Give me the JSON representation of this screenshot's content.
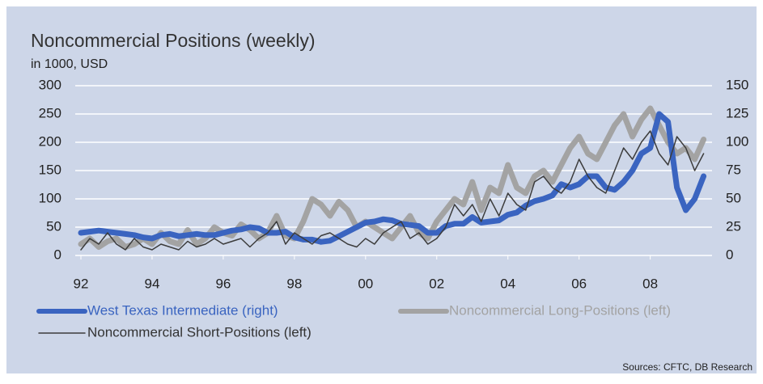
{
  "chart_data": {
    "type": "line",
    "title": "Noncommercial Positions (weekly)",
    "subtitle": "in 1000, USD",
    "source": "Sources: CFTC, DB Research",
    "x": [
      1992,
      1992.25,
      1992.5,
      1992.75,
      1993,
      1993.25,
      1993.5,
      1993.75,
      1994,
      1994.25,
      1994.5,
      1994.75,
      1995,
      1995.25,
      1995.5,
      1995.75,
      1996,
      1996.25,
      1996.5,
      1996.75,
      1997,
      1997.25,
      1997.5,
      1997.75,
      1998,
      1998.25,
      1998.5,
      1998.75,
      1999,
      1999.25,
      1999.5,
      1999.75,
      2000,
      2000.25,
      2000.5,
      2000.75,
      2001,
      2001.25,
      2001.5,
      2001.75,
      2002,
      2002.25,
      2002.5,
      2002.75,
      2003,
      2003.25,
      2003.5,
      2003.75,
      2004,
      2004.25,
      2004.5,
      2004.75,
      2005,
      2005.25,
      2005.5,
      2005.75,
      2006,
      2006.25,
      2006.5,
      2006.75,
      2007,
      2007.25,
      2007.5,
      2007.75,
      2008,
      2008.25,
      2008.5,
      2008.75,
      2009,
      2009.25,
      2009.5
    ],
    "xlim": [
      1992,
      2009.6
    ],
    "xticks": [
      {
        "value": 1992,
        "label": "92"
      },
      {
        "value": 1994,
        "label": "94"
      },
      {
        "value": 1996,
        "label": "96"
      },
      {
        "value": 1998,
        "label": "98"
      },
      {
        "value": 2000,
        "label": "00"
      },
      {
        "value": 2002,
        "label": "02"
      },
      {
        "value": 2004,
        "label": "04"
      },
      {
        "value": 2006,
        "label": "06"
      },
      {
        "value": 2008,
        "label": "08"
      }
    ],
    "ylim": [
      0,
      300
    ],
    "yticks": [
      0,
      50,
      100,
      150,
      200,
      250,
      300
    ],
    "y2lim": [
      0,
      150
    ],
    "y2ticks": [
      0,
      25,
      50,
      75,
      100,
      125,
      150
    ],
    "grid": true,
    "series": [
      {
        "name": "West Texas Intermediate (right)",
        "color": "#3a64c0",
        "axis": "y2",
        "width": 7,
        "values": [
          20,
          21,
          22,
          21,
          20,
          19,
          18,
          16,
          15,
          18,
          19,
          17,
          18,
          19,
          18,
          18,
          20,
          22,
          23,
          25,
          24,
          20,
          20,
          21,
          16,
          14,
          14,
          12,
          13,
          17,
          21,
          25,
          29,
          30,
          32,
          31,
          28,
          27,
          26,
          20,
          20,
          26,
          28,
          28,
          34,
          29,
          30,
          31,
          36,
          38,
          44,
          48,
          50,
          53,
          63,
          60,
          63,
          70,
          70,
          60,
          58,
          65,
          75,
          90,
          95,
          125,
          118,
          60,
          40,
          50,
          70
        ]
      },
      {
        "name": "Noncommercial Long-Positions (left)",
        "color": "#a3a3a3",
        "axis": "y",
        "width": 7,
        "values": [
          20,
          30,
          15,
          25,
          30,
          15,
          20,
          30,
          20,
          40,
          25,
          20,
          45,
          20,
          30,
          50,
          40,
          35,
          55,
          45,
          30,
          40,
          70,
          35,
          30,
          60,
          100,
          90,
          70,
          95,
          80,
          50,
          60,
          50,
          40,
          30,
          50,
          70,
          40,
          30,
          60,
          80,
          100,
          90,
          130,
          80,
          120,
          110,
          160,
          120,
          110,
          140,
          150,
          130,
          160,
          190,
          210,
          180,
          170,
          200,
          230,
          250,
          210,
          240,
          260,
          230,
          200,
          180,
          190,
          170,
          205
        ]
      },
      {
        "name": "Noncommercial Short-Positions (left)",
        "color": "#3c3c3c",
        "axis": "y",
        "width": 1.5,
        "values": [
          10,
          30,
          20,
          40,
          20,
          10,
          30,
          15,
          10,
          20,
          15,
          10,
          25,
          15,
          20,
          30,
          20,
          25,
          30,
          15,
          30,
          40,
          60,
          20,
          40,
          30,
          20,
          35,
          40,
          30,
          20,
          15,
          30,
          20,
          40,
          50,
          60,
          30,
          40,
          20,
          30,
          50,
          90,
          70,
          90,
          60,
          100,
          70,
          110,
          90,
          80,
          130,
          140,
          120,
          110,
          130,
          170,
          140,
          120,
          110,
          150,
          190,
          170,
          200,
          220,
          180,
          160,
          210,
          190,
          150,
          180
        ]
      }
    ]
  }
}
